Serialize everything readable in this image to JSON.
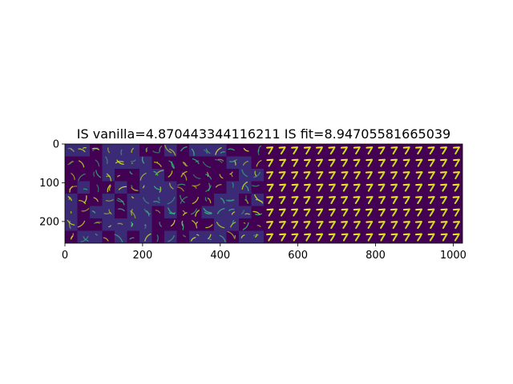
{
  "chart_data": {
    "type": "heatmap",
    "title": "IS vanilla=4.870443344116211 IS fit=8.94705581665039",
    "xlabel": "",
    "ylabel": "",
    "image_shape": [
      256,
      1024
    ],
    "xlim": [
      0,
      1024
    ],
    "ylim": [
      256,
      0
    ],
    "x_ticks": [
      0,
      200,
      400,
      600,
      800,
      1000
    ],
    "x_tick_labels": [
      "0",
      "200",
      "400",
      "600",
      "800",
      "1000"
    ],
    "y_ticks": [
      0,
      100,
      200
    ],
    "y_tick_labels": [
      "0",
      "100",
      "200"
    ],
    "colormap": "viridis",
    "grid": false,
    "panels": [
      {
        "x_range": [
          0,
          512
        ],
        "grid": [
          8,
          16
        ],
        "tile_px": 32,
        "content": "vanilla samples: faint, noisy digit-like strokes on a dark background"
      },
      {
        "x_range": [
          512,
          1024
        ],
        "grid": [
          8,
          16
        ],
        "tile_px": 32,
        "content": "fit samples: bright, consistent digit 7"
      }
    ]
  },
  "colors": {
    "background_dark": "#440154",
    "dark_tile": "#3b2f7a",
    "mid": "#31688e",
    "teal": "#35b779",
    "bright": "#c8e020",
    "peak": "#fde725"
  }
}
